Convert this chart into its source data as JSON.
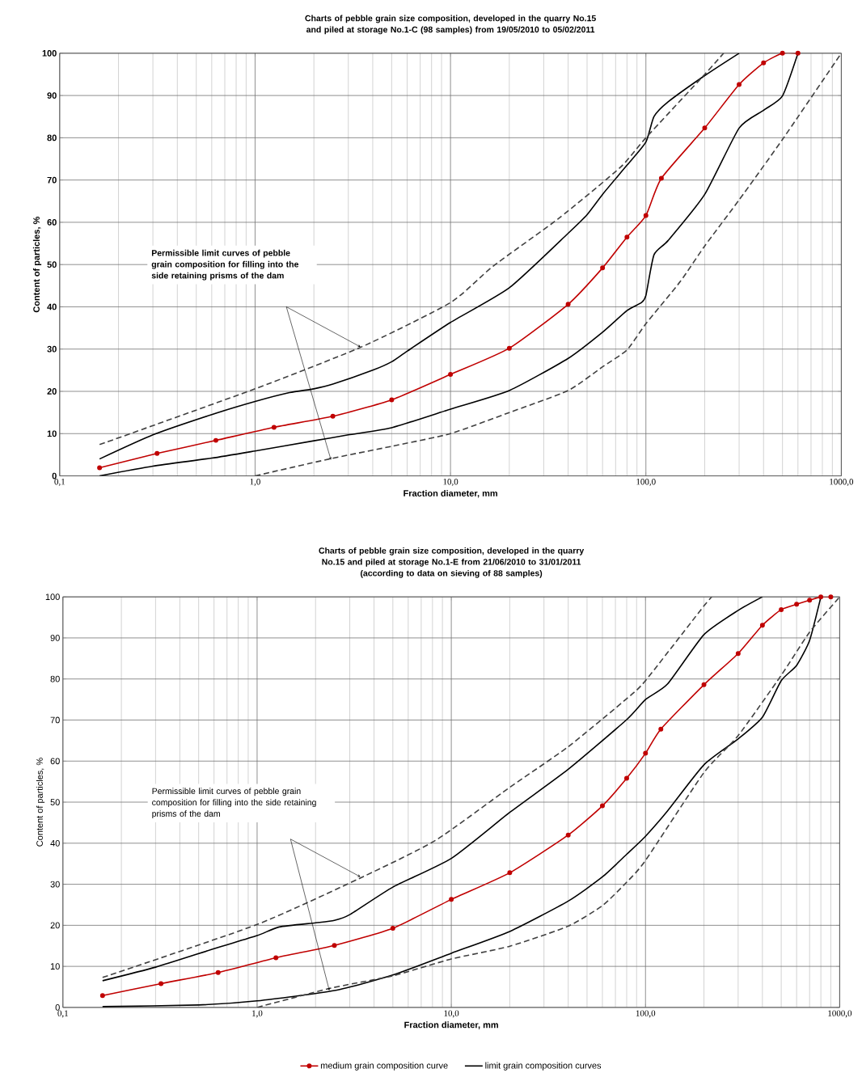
{
  "chart_data": [
    {
      "type": "line",
      "title": "Charts of pebble grain size composition, developed in the quarry No.15 and piled at storage No.1-C (98 samples) from 19/05/2010 to 05/02/2011",
      "xlabel": "Fraction diameter, mm",
      "ylabel": "Content of particles, %",
      "log": "x",
      "grid": true,
      "xlim": [
        0.1,
        1000
      ],
      "ylim": [
        0,
        100
      ],
      "xticks": [
        {
          "value": 0.1,
          "label": "0,1"
        },
        {
          "value": 1,
          "label": "1,0"
        },
        {
          "value": 10,
          "label": "10,0"
        },
        {
          "value": 100,
          "label": "100,0"
        },
        {
          "value": 1000,
          "label": "1000,0"
        }
      ],
      "yticks": [
        0,
        10,
        20,
        30,
        40,
        50,
        60,
        70,
        80,
        90,
        100
      ],
      "annotations": [
        "Permissible limit curves of pebble grain composition for filling into the side retaining prisms of the dam"
      ],
      "series": [
        {
          "color": "#c00000",
          "marker": "circle",
          "line_style": "solid",
          "x": [
            0.16,
            0.315,
            0.63,
            1.25,
            2.5,
            5,
            10,
            20,
            40,
            60,
            80,
            100,
            120,
            200,
            300,
            400,
            500,
            600
          ],
          "values": [
            1.9,
            5.3,
            8.4,
            11.5,
            14.1,
            18,
            24,
            30.2,
            40.6,
            49.2,
            56.5,
            61.6,
            70.4,
            82.3,
            92.6,
            97.7,
            100,
            100
          ]
        },
        {
          "color": "#000000",
          "marker": "none",
          "line_style": "solid",
          "x": [
            0.16,
            0.3,
            0.6,
            1,
            1.5,
            2,
            2.5,
            4,
            5,
            6,
            10,
            20,
            40,
            50,
            60,
            80,
            100,
            110,
            130,
            200,
            300
          ],
          "values": [
            4,
            9.7,
            14.5,
            17.6,
            19.7,
            20.6,
            21.7,
            25,
            27,
            29.5,
            36.3,
            44.5,
            57.4,
            61.8,
            66.6,
            73.5,
            79,
            85,
            88.5,
            94.7,
            100
          ]
        },
        {
          "color": "#000000",
          "marker": "none",
          "line_style": "solid",
          "x": [
            0.16,
            0.3,
            0.6,
            1,
            2,
            3,
            5,
            10,
            20,
            40,
            60,
            80,
            95,
            100,
            110,
            130,
            200,
            300,
            400,
            500,
            600
          ],
          "values": [
            0,
            2.3,
            4.2,
            5.9,
            8.3,
            9.7,
            11.4,
            15.8,
            20.2,
            27.8,
            34,
            39.1,
            41,
            42.7,
            52.3,
            55.7,
            66.6,
            82.3,
            86.5,
            89.9,
            100
          ]
        },
        {
          "color": "#404040",
          "marker": "none",
          "line_style": "dashed",
          "x": [
            0.16,
            1,
            3.5,
            10,
            16.5,
            36,
            74,
            100,
            200,
            250
          ],
          "values": [
            7.4,
            20.6,
            30.5,
            41,
            49.6,
            61,
            73,
            80,
            95,
            100
          ]
        },
        {
          "color": "#404040",
          "marker": "none",
          "line_style": "dashed",
          "x": [
            1,
            2.4,
            5,
            10,
            20,
            40,
            60,
            80,
            100,
            150,
            200,
            300,
            500,
            1000
          ],
          "values": [
            0,
            4,
            7,
            10,
            15,
            20.2,
            25.8,
            29.8,
            36,
            46,
            54.4,
            65.3,
            79.6,
            100
          ]
        }
      ]
    },
    {
      "type": "line",
      "title": "Charts of pebble grain size composition, developed in the quarry No.15 and piled at storage No.1-E from 21/06/2010 to 31/01/2011",
      "subtitle": "(according to data on sieving of 88 samples)",
      "xlabel": "Fraction diameter, mm",
      "ylabel": "Content of particles, %",
      "log": "x",
      "grid": true,
      "legend": "bottom",
      "xlim": [
        0.1,
        1000
      ],
      "ylim": [
        0,
        100
      ],
      "xticks": [
        {
          "value": 0.1,
          "label": "0,1"
        },
        {
          "value": 1,
          "label": "1,0"
        },
        {
          "value": 10,
          "label": "10,0"
        },
        {
          "value": 100,
          "label": "100,0"
        },
        {
          "value": 1000,
          "label": "1000,0"
        }
      ],
      "yticks": [
        0,
        10,
        20,
        30,
        40,
        50,
        60,
        70,
        80,
        90,
        100
      ],
      "annotations": [
        "Permissible limit curves of pebble grain composition for filling into the side retaining prisms of the dam"
      ],
      "series": [
        {
          "name": "medium grain composition curve",
          "color": "#c00000",
          "marker": "circle",
          "line_style": "solid",
          "x": [
            0.16,
            0.32,
            0.63,
            1.25,
            2.5,
            5,
            10,
            20,
            40,
            60,
            80,
            100,
            120,
            200,
            300,
            400,
            500,
            600,
            700,
            800,
            900
          ],
          "values": [
            2.9,
            5.8,
            8.5,
            12.1,
            15.1,
            19.3,
            26.3,
            32.8,
            42,
            49.1,
            55.8,
            61.9,
            67.8,
            78.6,
            86.2,
            93.1,
            96.9,
            98.2,
            99.2,
            100,
            100
          ]
        },
        {
          "name": "limit grain composition curves",
          "color": "#000000",
          "marker": "none",
          "line_style": "solid",
          "x": [
            0.16,
            0.3,
            0.6,
            1,
            1.3,
            2,
            2.5,
            3,
            5,
            10,
            20,
            40,
            80,
            100,
            130,
            200,
            300,
            400
          ],
          "values": [
            6.5,
            9.8,
            14.3,
            17.5,
            19.6,
            20.6,
            21.2,
            22.6,
            29.3,
            36.3,
            47.5,
            58,
            70.1,
            75,
            78.8,
            90.8,
            96.7,
            100
          ]
        },
        {
          "color": "#000000",
          "marker": "none",
          "line_style": "solid",
          "x": [
            0.16,
            0.5,
            1,
            2.5,
            5,
            10,
            20,
            40,
            60,
            80,
            100,
            130,
            200,
            300,
            400,
            500,
            600,
            700,
            800
          ],
          "values": [
            0.2,
            0.6,
            1.6,
            4.1,
            7.9,
            13.2,
            18.5,
            25.9,
            31.8,
            37.3,
            41.7,
            47.9,
            59.1,
            65.4,
            70.7,
            79.6,
            83.3,
            89.4,
            100
          ]
        },
        {
          "color": "#404040",
          "marker": "none",
          "line_style": "dashed",
          "x": [
            0.16,
            1,
            3.5,
            8.3,
            20,
            40,
            80,
            100,
            200,
            220
          ],
          "values": [
            7.3,
            20.2,
            31.8,
            40.7,
            53.6,
            63.5,
            75.2,
            79.6,
            97.8,
            100
          ]
        },
        {
          "color": "#404040",
          "marker": "none",
          "line_style": "dashed",
          "x": [
            1,
            2.4,
            5,
            10,
            20,
            40,
            60,
            80,
            100,
            200,
            300,
            500,
            700,
            1000
          ],
          "values": [
            0,
            4.7,
            7.7,
            11.8,
            14.9,
            19.8,
            24.8,
            30.5,
            35.8,
            57.2,
            66.2,
            80.9,
            91.4,
            100
          ]
        }
      ]
    }
  ]
}
